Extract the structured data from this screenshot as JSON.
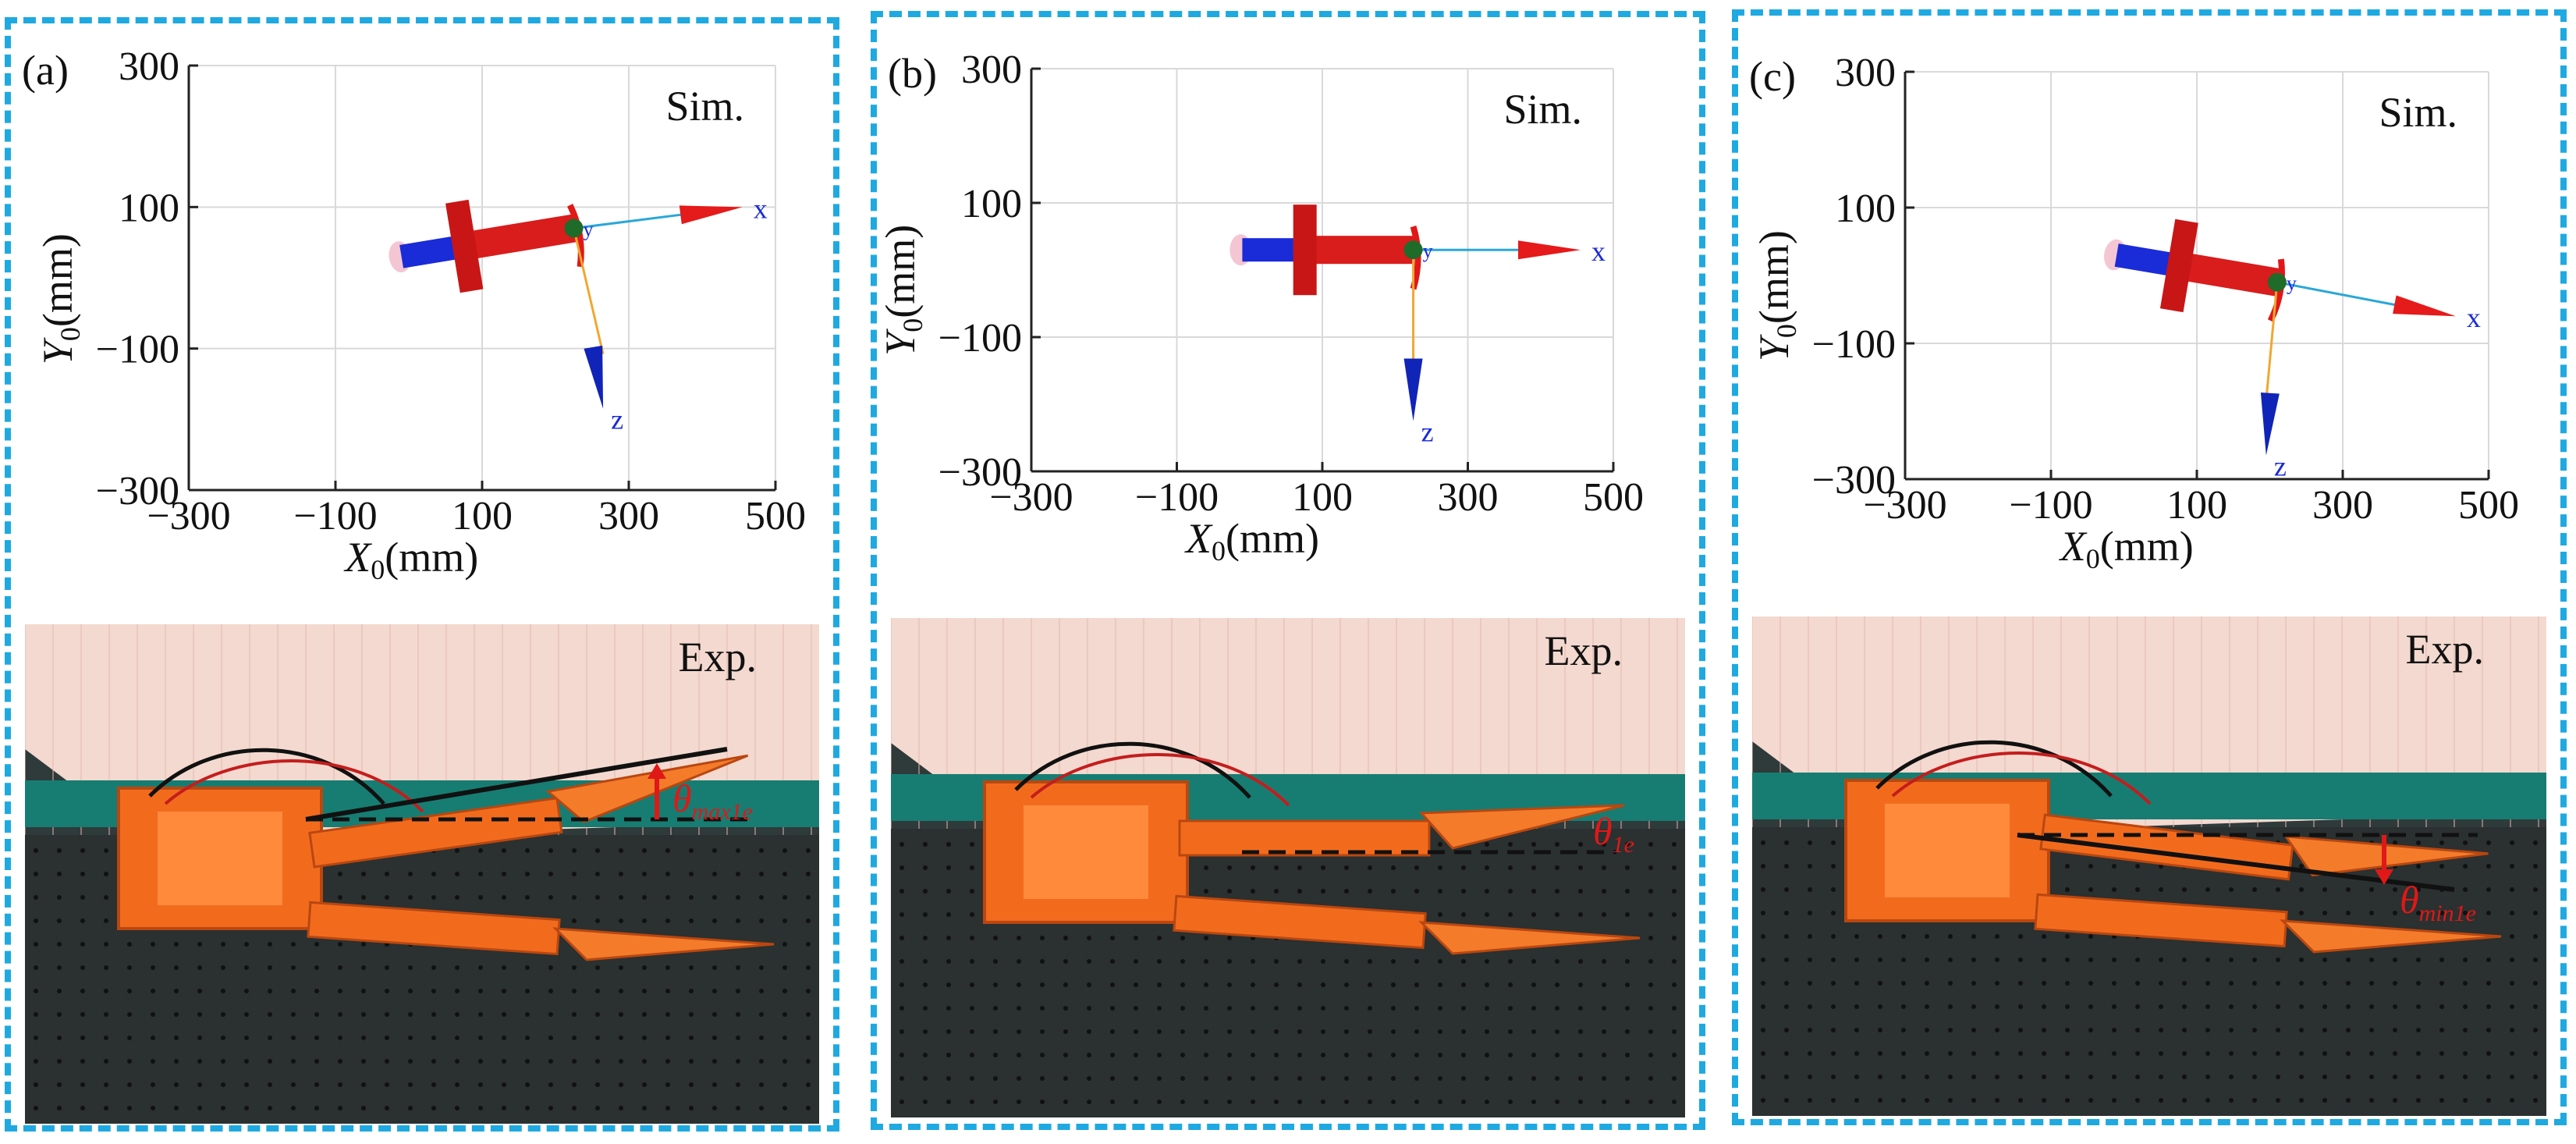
{
  "figure": {
    "border_color": "#1fa9e1",
    "panels": [
      {
        "id": "a",
        "panel_label": "(a)",
        "sim_label": "Sim.",
        "exp_label": "Exp.",
        "angle_symbol": "θ",
        "angle_subscript": "max1e",
        "angle_direction": "up"
      },
      {
        "id": "b",
        "panel_label": "(b)",
        "sim_label": "Sim.",
        "exp_label": "Exp.",
        "angle_symbol": "θ",
        "angle_subscript": "1e",
        "angle_direction": "none"
      },
      {
        "id": "c",
        "panel_label": "(c)",
        "sim_label": "Sim.",
        "exp_label": "Exp.",
        "angle_symbol": "θ",
        "angle_subscript": "min1e",
        "angle_direction": "down"
      }
    ]
  },
  "chart_data": [
    {
      "type": "scatter",
      "title": "",
      "xlabel": "X0(mm)",
      "ylabel": "Y0(mm)",
      "xlim": [
        -300,
        500
      ],
      "ylim": [
        -300,
        300
      ],
      "xticks": [
        -300,
        -100,
        100,
        300,
        500
      ],
      "yticks": [
        300,
        100,
        -100,
        -300
      ],
      "xtick_labels": [
        "−300",
        "−100",
        "100",
        "300",
        "500"
      ],
      "ytick_labels": [
        "300",
        "100",
        "−100",
        "−300"
      ],
      "grid": true,
      "annotation": "Sim.",
      "pose": {
        "body": {
          "x_start": -10,
          "x_end": 225,
          "y_start": 30,
          "y_end": 70
        },
        "cross_at_x": 60,
        "origin": {
          "x": 225,
          "y": 70
        },
        "x_axis_tip": {
          "x": 455,
          "y": 100
        },
        "z_axis_tip": {
          "x": 265,
          "y": -185
        },
        "axis_labels": [
          "x",
          "y",
          "z"
        ]
      }
    },
    {
      "type": "scatter",
      "title": "",
      "xlabel": "X0(mm)",
      "ylabel": "Y0(mm)",
      "xlim": [
        -300,
        500
      ],
      "ylim": [
        -300,
        300
      ],
      "xticks": [
        -300,
        -100,
        100,
        300,
        500
      ],
      "yticks": [
        300,
        100,
        -100,
        -300
      ],
      "xtick_labels": [
        "−300",
        "−100",
        "100",
        "300",
        "500"
      ],
      "ytick_labels": [
        "300",
        "100",
        "−100",
        "−300"
      ],
      "grid": true,
      "annotation": "Sim.",
      "pose": {
        "body": {
          "x_start": -10,
          "x_end": 225,
          "y_start": 30,
          "y_end": 30
        },
        "cross_at_x": 60,
        "origin": {
          "x": 225,
          "y": 30
        },
        "x_axis_tip": {
          "x": 455,
          "y": 30
        },
        "z_axis_tip": {
          "x": 225,
          "y": -225
        },
        "axis_labels": [
          "x",
          "y",
          "z"
        ]
      }
    },
    {
      "type": "scatter",
      "title": "",
      "xlabel": "X0(mm)",
      "ylabel": "Y0(mm)",
      "xlim": [
        -300,
        500
      ],
      "ylim": [
        -300,
        300
      ],
      "xticks": [
        -300,
        -100,
        100,
        300,
        500
      ],
      "yticks": [
        300,
        100,
        -100,
        -300
      ],
      "xtick_labels": [
        "−300",
        "−100",
        "100",
        "300",
        "500"
      ],
      "ytick_labels": [
        "300",
        "100",
        "−100",
        "−300"
      ],
      "grid": true,
      "annotation": "Sim.",
      "pose": {
        "body": {
          "x_start": -10,
          "x_end": 210,
          "y_start": 30,
          "y_end": -10
        },
        "cross_at_x": 60,
        "origin": {
          "x": 210,
          "y": -10
        },
        "x_axis_tip": {
          "x": 455,
          "y": -60
        },
        "z_axis_tip": {
          "x": 195,
          "y": -265
        },
        "axis_labels": [
          "x",
          "y",
          "z"
        ]
      }
    }
  ]
}
